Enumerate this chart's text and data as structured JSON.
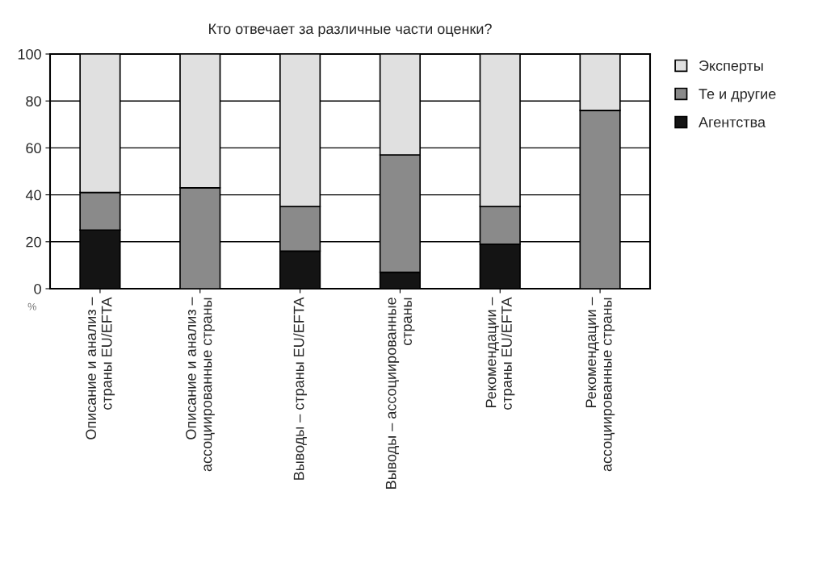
{
  "chart_data": {
    "type": "bar",
    "title": "Кто отвечает за различные части оценки?",
    "ylabel": "%",
    "categories": [
      "Описание и анализ –\nстраны EU/EFTA",
      "Описание и анализ –\nассоциированные страны",
      "Выводы – страны EU/EFTA",
      "Выводы – ассоциированные\nстраны",
      "Рекомендации –\nстраны EU/EFTA",
      "Рекомендации –\nассоциированные страны"
    ],
    "series": [
      {
        "name": "Агентства",
        "color": "#141414",
        "values": [
          25,
          0,
          16,
          7,
          19,
          0
        ]
      },
      {
        "name": "Те и другие",
        "color": "#8a8a8a",
        "values": [
          16,
          43,
          19,
          50,
          16,
          76
        ]
      },
      {
        "name": "Эксперты",
        "color": "#e0e0e0",
        "values": [
          59,
          57,
          65,
          43,
          65,
          24
        ]
      }
    ],
    "stacked": true,
    "ylim": [
      0,
      100
    ],
    "yticks": [
      0,
      20,
      40,
      60,
      80,
      100
    ],
    "grid": "y",
    "legend": "right"
  }
}
